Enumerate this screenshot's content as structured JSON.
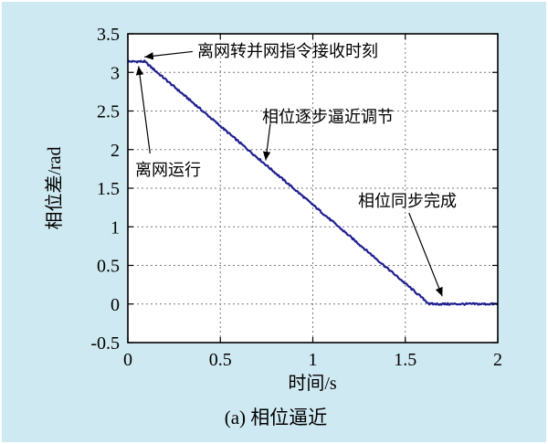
{
  "page": {
    "background": "#cfe9f2"
  },
  "chart_data": {
    "type": "line",
    "title": "",
    "xlabel": "时间/s",
    "ylabel": "相位差/rad",
    "caption": "(a) 相位逼近",
    "xlim": [
      0,
      2
    ],
    "ylim": [
      -0.5,
      3.5
    ],
    "xticks": [
      0,
      0.5,
      1,
      1.5,
      2
    ],
    "xtick_labels": [
      "0",
      "0.5",
      "1",
      "1.5",
      "2"
    ],
    "yticks": [
      -0.5,
      0,
      0.5,
      1,
      1.5,
      2,
      2.5,
      3,
      3.5
    ],
    "ytick_labels": [
      "-0.5",
      "0",
      "0.5",
      "1",
      "1.5",
      "2",
      "2.5",
      "3",
      "3.5"
    ],
    "grid": true,
    "grid_style": "dashed",
    "legend": "none",
    "line_color": "#1f1f8f",
    "series": [
      {
        "name": "相位差",
        "breakpoints": [
          [
            0,
            3.141
          ],
          [
            0.09,
            3.141
          ],
          [
            1.63,
            0
          ],
          [
            2,
            0
          ]
        ],
        "noise_amplitude": 0.012,
        "description": "starts at pi rad, flat until 0.09 s, linear decrease to 0 rad at 1.63 s, then flat at 0"
      }
    ],
    "annotations": [
      {
        "text": "离网转并网指令接收时刻",
        "line_from": [
          0.35,
          3.27
        ],
        "line_to": [
          0.09,
          3.2
        ]
      },
      {
        "text": "离网运行",
        "line_from": [
          0.12,
          1.95
        ],
        "line_to": [
          0.058,
          3.08
        ]
      },
      {
        "text": "相位逐步逼近调节",
        "line_from": [
          0.77,
          2.33
        ],
        "line_to": [
          0.745,
          1.86
        ]
      },
      {
        "text": "相位同步完成",
        "line_from": [
          1.52,
          1.18
        ],
        "line_to": [
          1.7,
          0.1
        ]
      }
    ]
  }
}
